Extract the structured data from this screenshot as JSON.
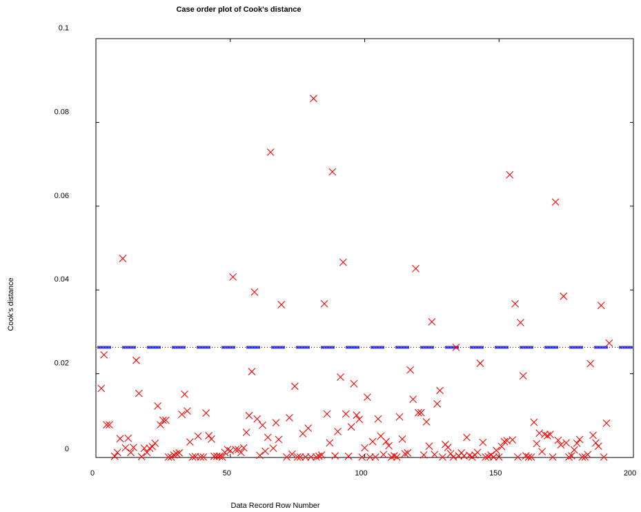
{
  "chart_data": {
    "type": "scatter",
    "title": "Case order plot of Cook's distance",
    "xlabel": "Data Record Row Number",
    "ylabel": "Cook's distance",
    "xlim": [
      0,
      200
    ],
    "ylim": [
      0,
      0.1
    ],
    "x_ticks": [
      0,
      50,
      100,
      150,
      200
    ],
    "x_tick_labels": [
      "0",
      "50",
      "100",
      "150",
      "200"
    ],
    "y_ticks": [
      0,
      0.02,
      0.04,
      0.06,
      0.08,
      0.1
    ],
    "y_tick_labels": [
      "0",
      "0.02",
      "0.04",
      "0.06",
      "0.08",
      "0.1"
    ],
    "grid": false,
    "colors": {
      "points": "#ff0000",
      "threshold_line": "#4444ff",
      "threshold_dots": "#000000"
    },
    "threshold": {
      "y": 0.0263
    },
    "series": [
      {
        "marker": "x",
        "points": [
          [
            2,
            0.0165
          ],
          [
            3,
            0.0245
          ],
          [
            4,
            0.0078
          ],
          [
            5,
            0.0078
          ],
          [
            7,
            0.0003
          ],
          [
            8,
            0.0012
          ],
          [
            9,
            0.0045
          ],
          [
            10,
            0.0475
          ],
          [
            11,
            0.0023
          ],
          [
            12,
            0.0046
          ],
          [
            13,
            0.0012
          ],
          [
            14,
            0.0024
          ],
          [
            15,
            0.0232
          ],
          [
            16,
            0.0153
          ],
          [
            17,
            0.0002
          ],
          [
            18,
            0.0022
          ],
          [
            19,
            0.0012
          ],
          [
            20,
            0.0022
          ],
          [
            21,
            0.0026
          ],
          [
            22,
            0.0034
          ],
          [
            23,
            0.0123
          ],
          [
            24,
            0.0078
          ],
          [
            25,
            0.0089
          ],
          [
            26,
            0.0089
          ],
          [
            27,
            0.0001
          ],
          [
            28,
            0.0001
          ],
          [
            29,
            0.0006
          ],
          [
            30,
            0.0009
          ],
          [
            31,
            0.0011
          ],
          [
            32,
            0.0103
          ],
          [
            33,
            0.0151
          ],
          [
            34,
            0.0111
          ],
          [
            35,
            0.0037
          ],
          [
            36,
            0.0001
          ],
          [
            37,
            0.0002
          ],
          [
            38,
            0.0051
          ],
          [
            39,
            0.0001
          ],
          [
            40,
            0.0001
          ],
          [
            41,
            0.0106
          ],
          [
            42,
            0.0052
          ],
          [
            43,
            0.0044
          ],
          [
            44,
            0.0003
          ],
          [
            45,
            0.0003
          ],
          [
            46,
            0.0003
          ],
          [
            47,
            0.0001
          ],
          [
            48,
            0.0012
          ],
          [
            49,
            0.0019
          ],
          [
            50,
            0.0016
          ],
          [
            51,
            0.0431
          ],
          [
            52,
            0.0019
          ],
          [
            53,
            0.0019
          ],
          [
            54,
            0.0012
          ],
          [
            55,
            0.0023
          ],
          [
            56,
            0.006
          ],
          [
            57,
            0.01
          ],
          [
            58,
            0.0205
          ],
          [
            59,
            0.0395
          ],
          [
            60,
            0.0092
          ],
          [
            61,
            0.0005
          ],
          [
            62,
            0.0077
          ],
          [
            63,
            0.0015
          ],
          [
            64,
            0.0048
          ],
          [
            65,
            0.0729
          ],
          [
            66,
            0.0022
          ],
          [
            67,
            0.0083
          ],
          [
            68,
            0.0043
          ],
          [
            69,
            0.0365
          ],
          [
            71,
            0.0001
          ],
          [
            72,
            0.0095
          ],
          [
            73,
            0.0008
          ],
          [
            74,
            0.017
          ],
          [
            75,
            0.0001
          ],
          [
            76,
            0.0001
          ],
          [
            77,
            0.0057
          ],
          [
            78,
            0.0001
          ],
          [
            79,
            0.007
          ],
          [
            80,
            0.0001
          ],
          [
            81,
            0.0857
          ],
          [
            82,
            0.0001
          ],
          [
            83,
            0.0003
          ],
          [
            84,
            0.0006
          ],
          [
            85,
            0.0367
          ],
          [
            86,
            0.0104
          ],
          [
            87,
            0.0035
          ],
          [
            88,
            0.0682
          ],
          [
            89,
            0.0004
          ],
          [
            90,
            0.0062
          ],
          [
            91,
            0.0192
          ],
          [
            92,
            0.0466
          ],
          [
            93,
            0.0104
          ],
          [
            94,
            0.0003
          ],
          [
            95,
            0.0073
          ],
          [
            96,
            0.0176
          ],
          [
            97,
            0.0101
          ],
          [
            98,
            0.0091
          ],
          [
            99,
            0.0001
          ],
          [
            100,
            0.0023
          ],
          [
            101,
            0.0144
          ],
          [
            102,
            0.0001
          ],
          [
            103,
            0.0038
          ],
          [
            104,
            0.0001
          ],
          [
            105,
            0.0092
          ],
          [
            106,
            0.0051
          ],
          [
            107,
            0.0007
          ],
          [
            108,
            0.0038
          ],
          [
            109,
            0.0028
          ],
          [
            110,
            0.0001
          ],
          [
            111,
            0.0004
          ],
          [
            112,
            0.0001
          ],
          [
            113,
            0.0097
          ],
          [
            114,
            0.0044
          ],
          [
            115,
            0.0009
          ],
          [
            116,
            0.0011
          ],
          [
            117,
            0.0209
          ],
          [
            118,
            0.0139
          ],
          [
            119,
            0.0451
          ],
          [
            120,
            0.0107
          ],
          [
            121,
            0.0107
          ],
          [
            122,
            0.0006
          ],
          [
            123,
            0.0085
          ],
          [
            124,
            0.0027
          ],
          [
            125,
            0.0324
          ],
          [
            126,
            0.0007
          ],
          [
            127,
            0.0128
          ],
          [
            128,
            0.016
          ],
          [
            129,
            0.0001
          ],
          [
            130,
            0.0031
          ],
          [
            131,
            0.0024
          ],
          [
            132,
            0.0009
          ],
          [
            133,
            0.0001
          ],
          [
            134,
            0.0263
          ],
          [
            135,
            0.0004
          ],
          [
            136,
            0.0011
          ],
          [
            137,
            0.0004
          ],
          [
            138,
            0.0048
          ],
          [
            139,
            0.0005
          ],
          [
            140,
            0.0001
          ],
          [
            141,
            0.0006
          ],
          [
            142,
            0.0012
          ],
          [
            143,
            0.0225
          ],
          [
            144,
            0.0036
          ],
          [
            145,
            0.0001
          ],
          [
            146,
            0.0002
          ],
          [
            147,
            0.0006
          ],
          [
            148,
            0.0001
          ],
          [
            149,
            0.0017
          ],
          [
            150,
            0.0001
          ],
          [
            151,
            0.0026
          ],
          [
            152,
            0.0038
          ],
          [
            153,
            0.004
          ],
          [
            154,
            0.0675
          ],
          [
            155,
            0.0042
          ],
          [
            156,
            0.0367
          ],
          [
            157,
            0.0001
          ],
          [
            158,
            0.0322
          ],
          [
            159,
            0.0195
          ],
          [
            160,
            0.0004
          ],
          [
            161,
            0.0001
          ],
          [
            162,
            0.0001
          ],
          [
            163,
            0.0084
          ],
          [
            164,
            0.0033
          ],
          [
            165,
            0.0058
          ],
          [
            166,
            0.0014
          ],
          [
            167,
            0.0055
          ],
          [
            168,
            0.0052
          ],
          [
            169,
            0.0055
          ],
          [
            170,
            0.0001
          ],
          [
            171,
            0.061
          ],
          [
            172,
            0.0041
          ],
          [
            173,
            0.003
          ],
          [
            174,
            0.0385
          ],
          [
            175,
            0.0035
          ],
          [
            176,
            0.0001
          ],
          [
            177,
            0.0004
          ],
          [
            178,
            0.0018
          ],
          [
            179,
            0.0034
          ],
          [
            180,
            0.0043
          ],
          [
            181,
            0.0001
          ],
          [
            182,
            0.0001
          ],
          [
            183,
            0.0007
          ],
          [
            184,
            0.0224
          ],
          [
            185,
            0.0053
          ],
          [
            186,
            0.0035
          ],
          [
            187,
            0.0027
          ],
          [
            188,
            0.0363
          ],
          [
            189,
            0.0001
          ],
          [
            190,
            0.0082
          ],
          [
            191,
            0.0273
          ]
        ]
      }
    ]
  }
}
